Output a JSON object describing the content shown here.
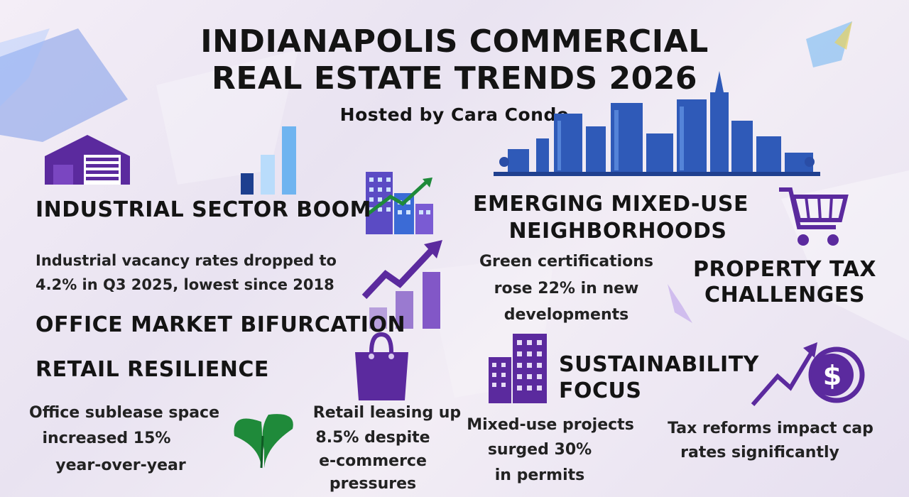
{
  "header": {
    "title_line1": "INDIANAPOLIS COMMERCIAL",
    "title_line2": "REAL ESTATE TRENDS 2026",
    "subtitle": "Hosted by Cara Conde"
  },
  "sections": {
    "industrial": {
      "heading": "INDUSTRIAL SECTOR BOOM",
      "text_line1": "Industrial vacancy rates dropped to",
      "text_line2": "4.2% in Q3 2025, lowest since 2018"
    },
    "office": {
      "heading": "OFFICE MARKET BIFURCATION",
      "text_line1": "Office sublease space",
      "text_line2": "increased 15%",
      "text_line3": "year-over-year"
    },
    "retail": {
      "heading": "RETAIL RESILIENCE",
      "text_line1": "Retail leasing up",
      "text_line2": "8.5% despite",
      "text_line3": "e-commerce",
      "text_line4": "pressures"
    },
    "mixed_use": {
      "heading_line1": "EMERGING MIXED-USE",
      "heading_line2": "NEIGHBORHOODS",
      "text_line1": "Mixed-use projects",
      "text_line2": "surged 30%",
      "text_line3": "in permits"
    },
    "sustainability": {
      "heading_line1": "SUSTAINABILITY",
      "heading_line2": "FOCUS",
      "text_line1": "Green certifications",
      "text_line2": "rose 22% in new",
      "text_line3": "developments"
    },
    "property_tax": {
      "heading_line1": "PROPERTY TAX",
      "heading_line2": "CHALLENGES",
      "text_line1": "Tax reforms impact cap",
      "text_line2": "rates significantly"
    }
  },
  "icons": {
    "warehouse": "warehouse-icon",
    "bars": "bar-chart-icon",
    "city_growth": "city-growth-icon",
    "trend_up": "trend-arrow-icon",
    "skyline": "city-skyline",
    "cart": "shopping-cart-icon",
    "bag": "shopping-bag-icon",
    "leaf": "leaf-icon",
    "buildings": "office-building-icon",
    "dollar": "dollar-coin-icon"
  },
  "colors": {
    "purple": "#5b2a9e",
    "blue_dark": "#1d3f8f",
    "blue_light": "#6fb4f0",
    "green": "#1f8a3a"
  }
}
